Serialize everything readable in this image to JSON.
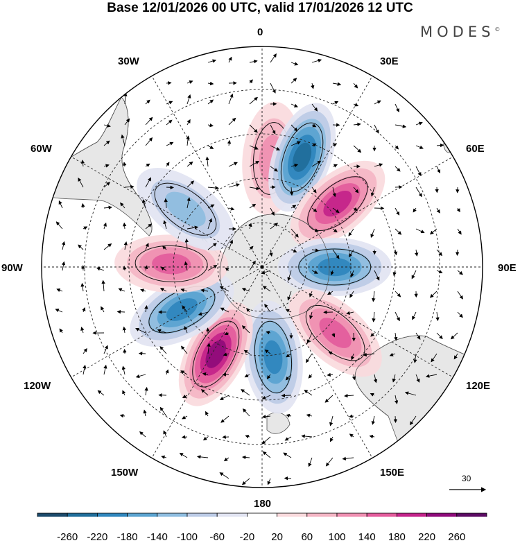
{
  "header": {
    "title": "Base 12/01/2026 00 UTC, valid 17/01/2026 12 UTC",
    "brand": "MODES",
    "brand_mark": "©"
  },
  "longitude_labels": {
    "top": "0",
    "deg30e": "30E",
    "deg60e": "60E",
    "deg90e": "90E",
    "deg120e": "120E",
    "deg150e": "150E",
    "bottom": "180",
    "deg150w": "150W",
    "deg120w": "120W",
    "deg90w": "90W",
    "deg60w": "60W",
    "deg30w": "30W"
  },
  "vector_reference": {
    "value": "30"
  },
  "colorbar": {
    "colors": [
      "#1b4a6b",
      "#1f6d9a",
      "#2f86bd",
      "#5aa3d0",
      "#8ebde0",
      "#bccbe6",
      "#e2e4f2",
      "#ffffff",
      "#fadadd",
      "#f4b5c4",
      "#ef8fb1",
      "#e35b9c",
      "#c3238a",
      "#8e0a7a",
      "#5b0a63"
    ],
    "labels": [
      "-260",
      "-220",
      "-180",
      "-140",
      "-100",
      "-60",
      "-20",
      "20",
      "60",
      "100",
      "140",
      "180",
      "220",
      "260"
    ]
  },
  "anomalies": [
    {
      "name": "positive-anomaly-south-atlantic",
      "sign": "positive",
      "strength": 0.55,
      "lat": -48,
      "lon": 5
    },
    {
      "name": "negative-anomaly-south-africa",
      "sign": "negative",
      "strength": 0.95,
      "lat": -45,
      "lon": 20
    },
    {
      "name": "positive-anomaly-indian-west",
      "sign": "positive",
      "strength": 0.85,
      "lat": -52,
      "lon": 50
    },
    {
      "name": "negative-anomaly-indian-east",
      "sign": "negative",
      "strength": 0.85,
      "lat": -62,
      "lon": 90
    },
    {
      "name": "positive-anomaly-south-australia",
      "sign": "positive",
      "strength": 0.7,
      "lat": -52,
      "lon": 132
    },
    {
      "name": "negative-anomaly-tasman",
      "sign": "negative",
      "strength": 0.9,
      "lat": -55,
      "lon": 173
    },
    {
      "name": "positive-anomaly-south-pacific",
      "sign": "positive",
      "strength": 0.95,
      "lat": -52,
      "lon": -152
    },
    {
      "name": "negative-anomaly-pacific-east",
      "sign": "negative",
      "strength": 0.75,
      "lat": -55,
      "lon": -118
    },
    {
      "name": "positive-anomaly-drake",
      "sign": "positive",
      "strength": 0.6,
      "lat": -55,
      "lon": -88
    },
    {
      "name": "negative-anomaly-patagonia",
      "sign": "negative",
      "strength": 0.45,
      "lat": -53,
      "lon": -53
    }
  ]
}
